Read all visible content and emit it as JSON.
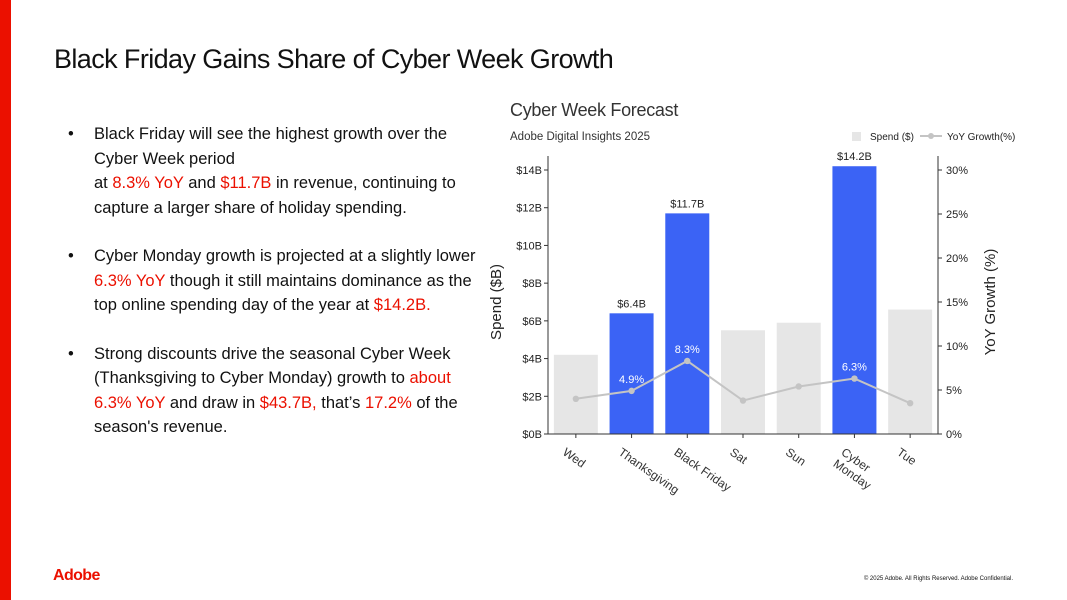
{
  "slide": {
    "title": "Black Friday Gains Share of Cyber Week Growth",
    "logo": "Adobe",
    "footer": "© 2025 Adobe. All Rights Reserved. Adobe Confidential."
  },
  "bullets": [
    {
      "marker": "•",
      "parts": [
        {
          "text": "Black Friday will see the highest growth over the Cyber Week period",
          "hl": false
        },
        {
          "text": "\n",
          "hl": false
        },
        {
          "text": "at ",
          "hl": false
        },
        {
          "text": "8.3% YoY",
          "hl": true
        },
        {
          "text": " and ",
          "hl": false
        },
        {
          "text": "$11.7B",
          "hl": true
        },
        {
          "text": " in revenue, continuing to capture a larger share of holiday spending.",
          "hl": false
        }
      ]
    },
    {
      "marker": "•",
      "parts": [
        {
          "text": "Cyber Monday growth is projected at a slightly lower ",
          "hl": false
        },
        {
          "text": "6.3% YoY",
          "hl": true
        },
        {
          "text": " though it still maintains dominance as the top online spending day of the year at ",
          "hl": false
        },
        {
          "text": "$14.2B.",
          "hl": true
        }
      ]
    },
    {
      "marker": "•",
      "parts": [
        {
          "text": "Strong discounts drive the seasonal Cyber Week (Thanksgiving to Cyber Monday) growth to ",
          "hl": false
        },
        {
          "text": "about 6.3% YoY",
          "hl": true
        },
        {
          "text": " and draw in ",
          "hl": false
        },
        {
          "text": "$43.7B,",
          "hl": true
        },
        {
          "text": "  that’s ",
          "hl": false
        },
        {
          "text": "17.2%",
          "hl": true
        },
        {
          "text": " of the season's revenue.",
          "hl": false
        }
      ]
    }
  ],
  "chart_data": {
    "type": "bar",
    "title": "Cyber Week Forecast",
    "subtitle": "Adobe Digital Insights 2025",
    "categories": [
      "Wed",
      "Thanksgiving",
      "Black Friday",
      "Sat",
      "Sun",
      "Cyber Monday",
      "Tue"
    ],
    "category_lines": [
      [
        "Wed"
      ],
      [
        "Thanksgiving"
      ],
      [
        "Black Friday"
      ],
      [
        "Sat"
      ],
      [
        "Sun"
      ],
      [
        "Cyber",
        "Monday"
      ],
      [
        "Tue"
      ]
    ],
    "series": [
      {
        "name": "Spend ($)",
        "type": "bar",
        "axis": "left",
        "values": [
          4.2,
          6.4,
          11.7,
          5.5,
          5.9,
          14.2,
          6.6
        ],
        "highlighted": [
          false,
          true,
          true,
          false,
          false,
          true,
          false
        ],
        "labels": [
          "",
          "$6.4B",
          "$11.7B",
          "",
          "",
          "$14.2B",
          ""
        ]
      },
      {
        "name": "YoY Growth(%)",
        "type": "line",
        "axis": "right",
        "values": [
          4.0,
          4.9,
          8.3,
          3.8,
          5.4,
          6.3,
          3.5
        ],
        "labels": [
          "",
          "4.9%",
          "8.3%",
          "",
          "",
          "6.3%",
          ""
        ]
      }
    ],
    "ylabel": "Spend ($B)",
    "y2label": "YoY Growth (%)",
    "ylim": [
      0,
      14
    ],
    "y2lim": [
      0,
      30
    ],
    "yticks": [
      0,
      2,
      4,
      6,
      8,
      10,
      12,
      14
    ],
    "ytick_labels": [
      "$0B",
      "$2B",
      "$4B",
      "$6B",
      "$8B",
      "$10B",
      "$12B",
      "$14B"
    ],
    "y2ticks": [
      0,
      5,
      10,
      15,
      20,
      25,
      30
    ],
    "y2tick_labels": [
      "0%",
      "5%",
      "10%",
      "15%",
      "20%",
      "25%",
      "30%"
    ],
    "legend_position": "top-right",
    "grid": false,
    "colors": {
      "highlight_bar": "#3b63f5",
      "base_bar": "#e6e6e6",
      "line": "#c4c4c4",
      "axis": "#333333"
    }
  }
}
